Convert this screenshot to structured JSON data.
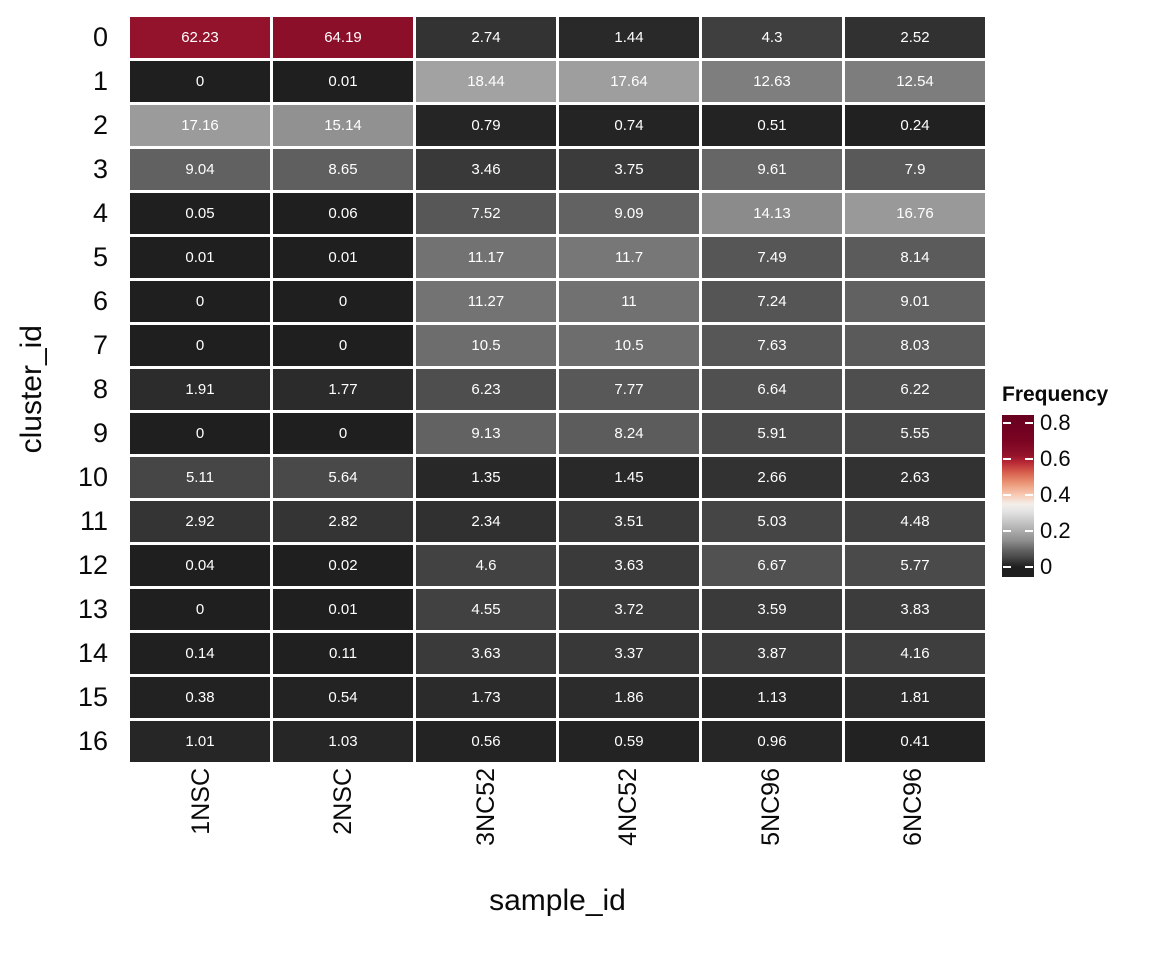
{
  "chart_data": {
    "type": "heatmap",
    "title": "",
    "xlabel": "sample_id",
    "ylabel": "cluster_id",
    "columns": [
      "1NSC",
      "2NSC",
      "3NC52",
      "4NC52",
      "5NC96",
      "6NC96"
    ],
    "rows": [
      "0",
      "1",
      "2",
      "3",
      "4",
      "5",
      "6",
      "7",
      "8",
      "9",
      "10",
      "11",
      "12",
      "13",
      "14",
      "15",
      "16"
    ],
    "cell_labels": [
      [
        "62.23",
        "64.19",
        "2.74",
        "1.44",
        "4.3",
        "2.52"
      ],
      [
        "0",
        "0.01",
        "18.44",
        "17.64",
        "12.63",
        "12.54"
      ],
      [
        "17.16",
        "15.14",
        "0.79",
        "0.74",
        "0.51",
        "0.24"
      ],
      [
        "9.04",
        "8.65",
        "3.46",
        "3.75",
        "9.61",
        "7.9"
      ],
      [
        "0.05",
        "0.06",
        "7.52",
        "9.09",
        "14.13",
        "16.76"
      ],
      [
        "0.01",
        "0.01",
        "11.17",
        "11.7",
        "7.49",
        "8.14"
      ],
      [
        "0",
        "0",
        "11.27",
        "11",
        "7.24",
        "9.01"
      ],
      [
        "0",
        "0",
        "10.5",
        "10.5",
        "7.63",
        "8.03"
      ],
      [
        "1.91",
        "1.77",
        "6.23",
        "7.77",
        "6.64",
        "6.22"
      ],
      [
        "0",
        "0",
        "9.13",
        "8.24",
        "5.91",
        "5.55"
      ],
      [
        "5.11",
        "5.64",
        "1.35",
        "1.45",
        "2.66",
        "2.63"
      ],
      [
        "2.92",
        "2.82",
        "2.34",
        "3.51",
        "5.03",
        "4.48"
      ],
      [
        "0.04",
        "0.02",
        "4.6",
        "3.63",
        "6.67",
        "5.77"
      ],
      [
        "0",
        "0.01",
        "4.55",
        "3.72",
        "3.59",
        "3.83"
      ],
      [
        "0.14",
        "0.11",
        "3.63",
        "3.37",
        "3.87",
        "4.16"
      ],
      [
        "0.38",
        "0.54",
        "1.73",
        "1.86",
        "1.13",
        "1.81"
      ],
      [
        "1.01",
        "1.03",
        "0.56",
        "0.59",
        "0.96",
        "0.41"
      ]
    ],
    "legend": {
      "title": "Frequency",
      "ticks": [
        {
          "label": "0.8",
          "value": 0.8
        },
        {
          "label": "0.6",
          "value": 0.6
        },
        {
          "label": "0.4",
          "value": 0.4
        },
        {
          "label": "0.2",
          "value": 0.2
        },
        {
          "label": "0",
          "value": 0.0
        }
      ],
      "bar_value_range": [
        -0.0556,
        0.8444
      ]
    },
    "fill_note": "cell fill frequency = displayed percent / 100",
    "colormap": [
      [
        0.0,
        "#1f1f1f"
      ],
      [
        0.02,
        "#2d2d2d"
      ],
      [
        0.05,
        "#454545"
      ],
      [
        0.09,
        "#616161"
      ],
      [
        0.125,
        "#7d7d7d"
      ],
      [
        0.145,
        "#8e8e8e"
      ],
      [
        0.17,
        "#9a9a9a"
      ],
      [
        0.2,
        "#ababab"
      ],
      [
        0.26,
        "#cbcbcb"
      ],
      [
        0.31,
        "#e4e4e4"
      ],
      [
        0.35,
        "#f3eeea"
      ],
      [
        0.4,
        "#f8cab4"
      ],
      [
        0.46,
        "#ec9b7b"
      ],
      [
        0.52,
        "#d96350"
      ],
      [
        0.58,
        "#ba2935"
      ],
      [
        0.62,
        "#93132b"
      ],
      [
        0.7,
        "#7a0422"
      ],
      [
        0.845,
        "#67001f"
      ]
    ]
  }
}
